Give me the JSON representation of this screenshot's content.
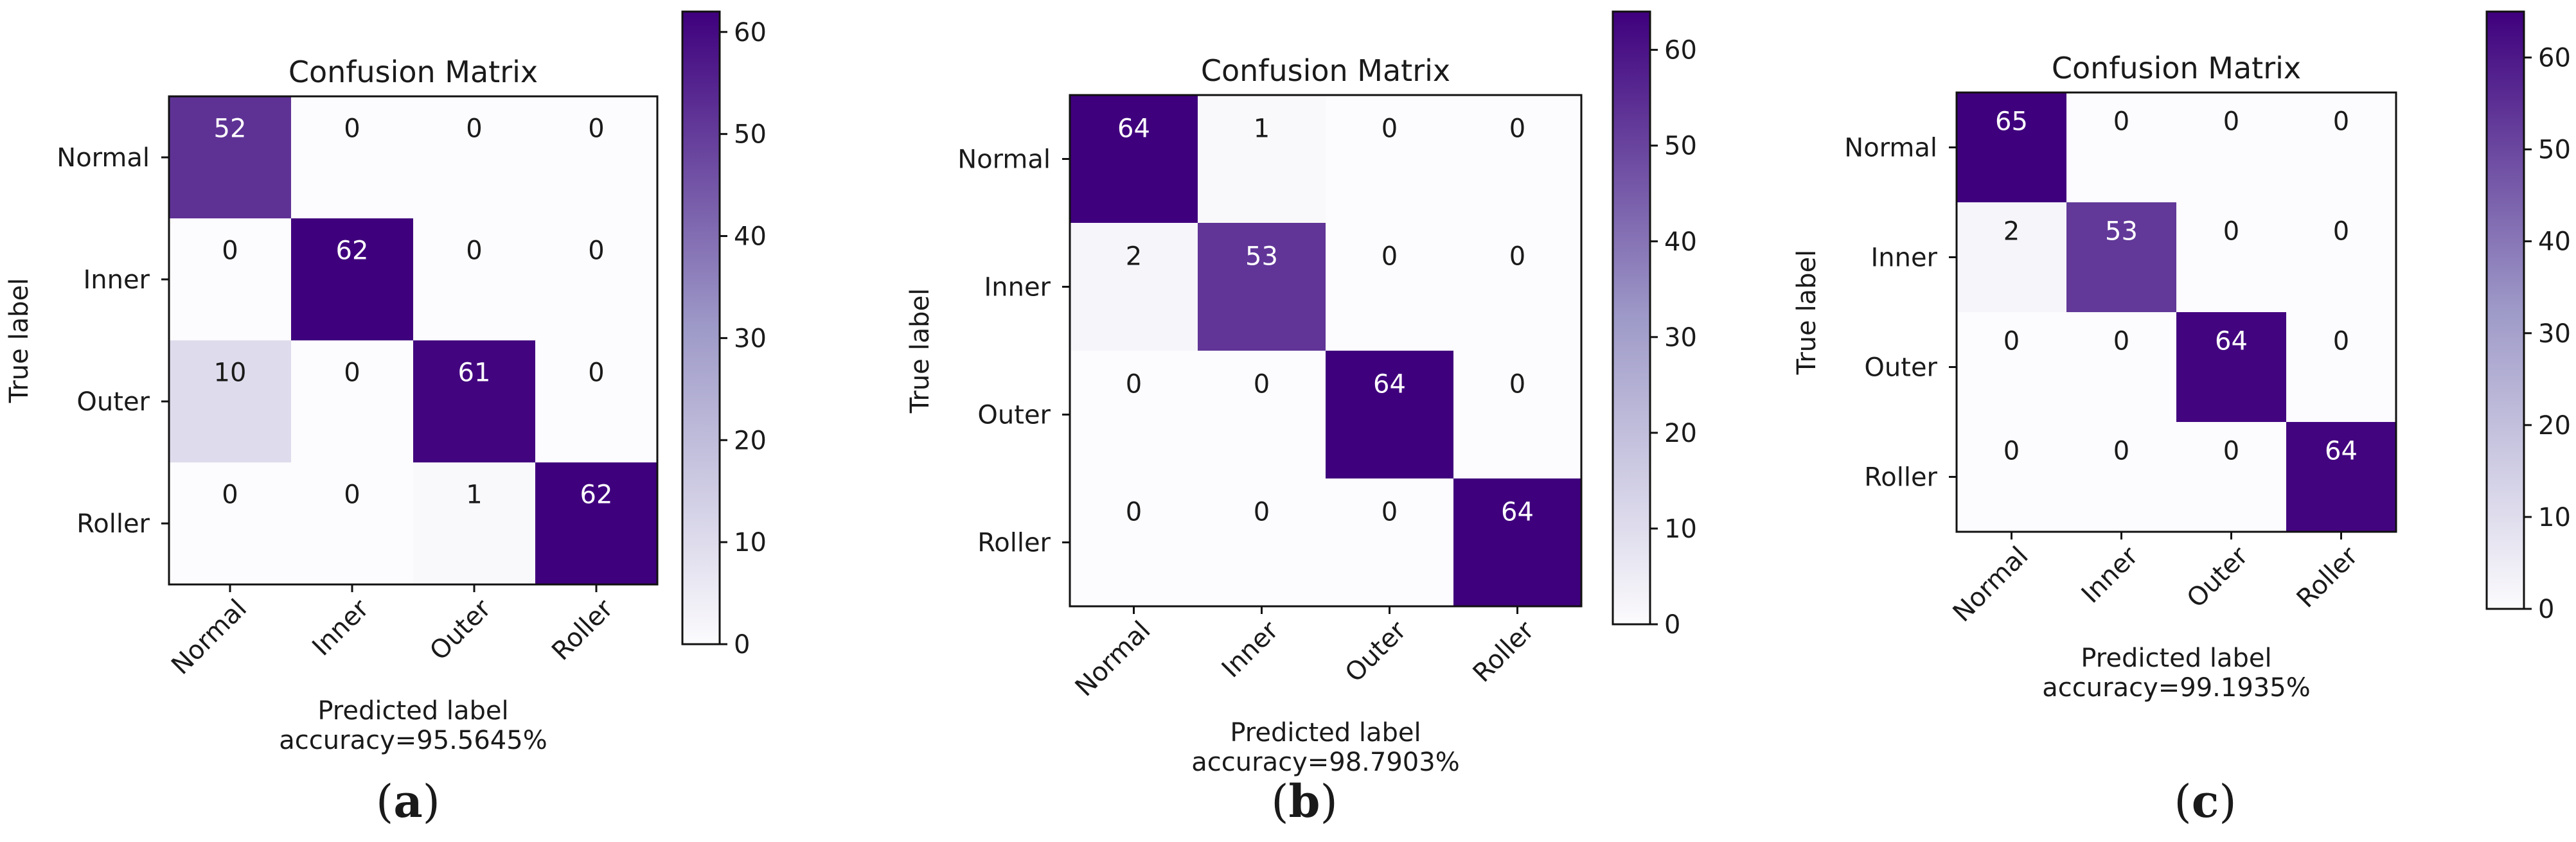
{
  "figure": {
    "colormap": {
      "low": "#fcfbfd",
      "mid": "#9e9ac8",
      "high": "#3f007d"
    },
    "text_dark": "#1a1a1a",
    "text_light": "#ffffff"
  },
  "chart_data": [
    {
      "type": "heatmap",
      "title": "Confusion Matrix",
      "xlabel": "Predicted label",
      "accuracy_text": "accuracy=95.5645%",
      "ylabel": "True label",
      "caption_letter": "a",
      "x_categories": [
        "Normal",
        "Inner",
        "Outer",
        "Roller"
      ],
      "y_categories": [
        "Normal",
        "Inner",
        "Outer",
        "Roller"
      ],
      "matrix": [
        [
          52,
          0,
          0,
          0
        ],
        [
          0,
          62,
          0,
          0
        ],
        [
          10,
          0,
          61,
          0
        ],
        [
          0,
          0,
          1,
          62
        ]
      ],
      "colorbar": {
        "min": 0,
        "max": 62,
        "ticks": [
          0,
          10,
          20,
          30,
          40,
          50,
          60
        ]
      }
    },
    {
      "type": "heatmap",
      "title": "Confusion Matrix",
      "xlabel": "Predicted label",
      "accuracy_text": "accuracy=98.7903%",
      "ylabel": "True label",
      "caption_letter": "b",
      "x_categories": [
        "Normal",
        "Inner",
        "Outer",
        "Roller"
      ],
      "y_categories": [
        "Normal",
        "Inner",
        "Outer",
        "Roller"
      ],
      "matrix": [
        [
          64,
          1,
          0,
          0
        ],
        [
          2,
          53,
          0,
          0
        ],
        [
          0,
          0,
          64,
          0
        ],
        [
          0,
          0,
          0,
          64
        ]
      ],
      "colorbar": {
        "min": 0,
        "max": 64,
        "ticks": [
          0,
          10,
          20,
          30,
          40,
          50,
          60
        ]
      }
    },
    {
      "type": "heatmap",
      "title": "Confusion Matrix",
      "xlabel": "Predicted label",
      "accuracy_text": "accuracy=99.1935%",
      "ylabel": "True label",
      "caption_letter": "c",
      "x_categories": [
        "Normal",
        "Inner",
        "Outer",
        "Roller"
      ],
      "y_categories": [
        "Normal",
        "Inner",
        "Outer",
        "Roller"
      ],
      "matrix": [
        [
          65,
          0,
          0,
          0
        ],
        [
          2,
          53,
          0,
          0
        ],
        [
          0,
          0,
          64,
          0
        ],
        [
          0,
          0,
          0,
          64
        ]
      ],
      "colorbar": {
        "min": 0,
        "max": 65,
        "ticks": [
          0,
          10,
          20,
          30,
          40,
          50,
          60
        ]
      }
    }
  ]
}
